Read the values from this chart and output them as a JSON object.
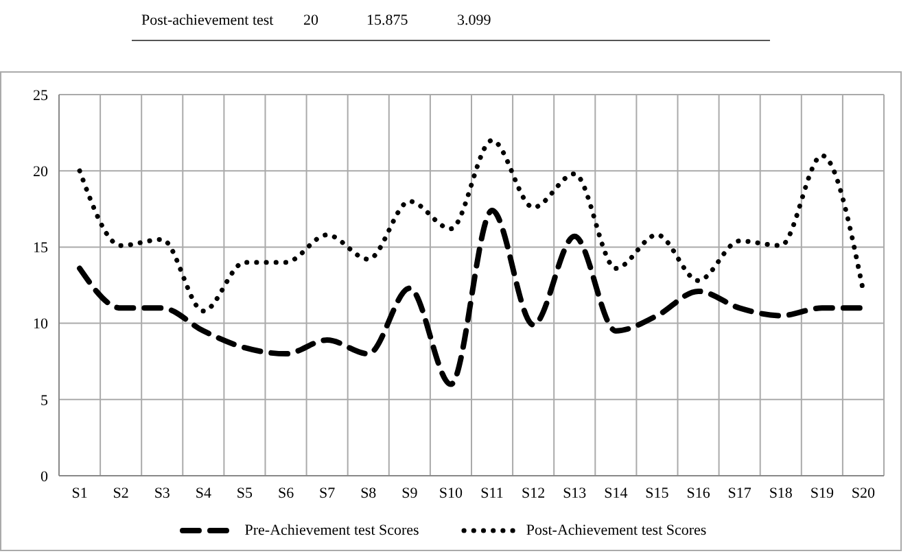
{
  "chart_data": {
    "type": "line",
    "annotations": [
      "Post-achievement test",
      "20",
      "15.875",
      "3.099"
    ],
    "categories": [
      "S1",
      "S2",
      "S3",
      "S4",
      "S5",
      "S6",
      "S7",
      "S8",
      "S9",
      "S10",
      "S11",
      "S12",
      "S13",
      "S14",
      "S15",
      "S16",
      "S17",
      "S18",
      "S19",
      "S20"
    ],
    "series": [
      {
        "name": "Pre-Achievement test Scores",
        "color": "#000000",
        "line_style": "dashed",
        "values": [
          13.6,
          11,
          11,
          9.5,
          8.4,
          8,
          8.9,
          8,
          12.3,
          6,
          17.4,
          9.9,
          15.7,
          9.5,
          10.5,
          12.1,
          11,
          10.5,
          11,
          11
        ]
      },
      {
        "name": "Post-Achievement test Scores",
        "color": "#000000",
        "line_style": "dotted",
        "values": [
          20,
          15.1,
          15.5,
          10.8,
          14,
          14,
          15.8,
          14.2,
          18,
          16.2,
          22,
          17.6,
          19.8,
          13.6,
          15.8,
          12.8,
          15.4,
          15.1,
          21,
          12.1
        ]
      }
    ],
    "ylim": [
      0,
      25
    ],
    "yticks": [
      0,
      5,
      10,
      15,
      20,
      25
    ],
    "grid": true,
    "legend": "bottom",
    "marker": "none"
  }
}
